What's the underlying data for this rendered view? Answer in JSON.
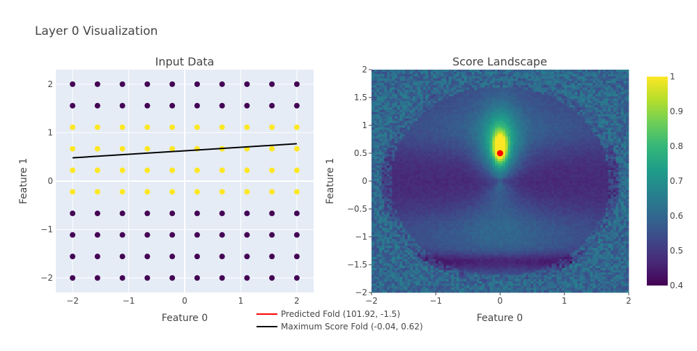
{
  "figure_title": "Layer 0 Visualization",
  "legend": {
    "placement": "bottom-center",
    "items": [
      {
        "label": "Predicted Fold (101.92, -1.5)",
        "color": "#ff0000"
      },
      {
        "label": "Maximum Score Fold (-0.04, 0.62)",
        "color": "#000000"
      }
    ]
  },
  "colors": {
    "plot_bg": "#e5ecf6",
    "grid": "#ffffff",
    "class_0": "#440154",
    "class_1": "#fde725",
    "marker": "#ff0000"
  },
  "chart_data": [
    {
      "type": "scatter",
      "title": "Input Data",
      "xlabel": "Feature 0",
      "ylabel": "Feature 1",
      "xlim": [
        -2.3,
        2.3
      ],
      "ylim": [
        -2.3,
        2.3
      ],
      "xticks": [
        -2,
        -1,
        0,
        1,
        2
      ],
      "yticks": [
        -2,
        -1,
        0,
        1,
        2
      ],
      "x": [
        -2,
        -1.556,
        -1.111,
        -0.667,
        -0.222,
        0.222,
        0.667,
        1.111,
        1.556,
        2
      ],
      "y": [
        -2,
        -1.556,
        -1.111,
        -0.667,
        -0.222,
        0.222,
        0.667,
        1.111,
        1.556,
        2
      ],
      "row_classes": [
        0,
        0,
        0,
        0,
        1,
        1,
        1,
        1,
        0,
        0
      ],
      "grid": true,
      "fold_line": {
        "x": [
          -2,
          2
        ],
        "y": [
          0.48,
          0.77
        ],
        "color": "#000000"
      }
    },
    {
      "type": "heatmap",
      "title": "Score Landscape",
      "xlabel": "Feature 0",
      "ylabel": "Feature 1",
      "xlim": [
        -2,
        2
      ],
      "ylim": [
        -2,
        2
      ],
      "xticks": [
        -2,
        -1,
        0,
        1,
        2
      ],
      "yticks": [
        -2,
        -1.5,
        -1,
        -0.5,
        0,
        0.5,
        1,
        1.5,
        2
      ],
      "colorscale": "Viridis",
      "zrange": [
        0.4,
        1.0
      ],
      "colorbar_ticks": [
        0.4,
        0.5,
        0.6,
        0.7,
        0.8,
        0.9,
        1
      ],
      "outside_value": 0.6,
      "grid_size": 100,
      "max_point": {
        "x": 0,
        "y": 0.5,
        "color": "#ff0000"
      }
    }
  ]
}
